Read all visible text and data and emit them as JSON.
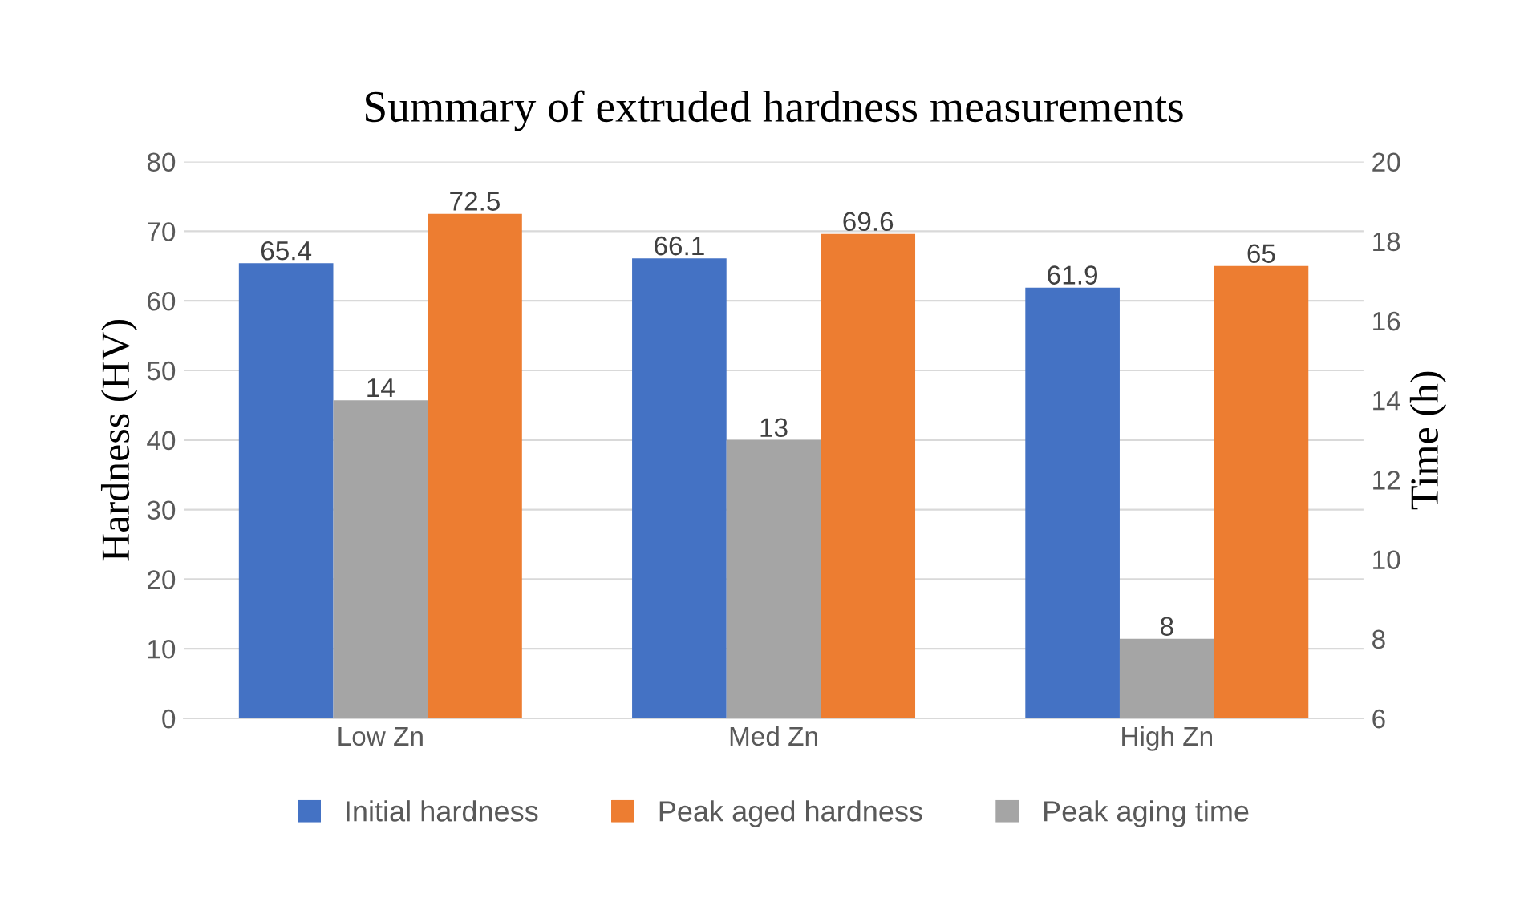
{
  "chart_data": {
    "type": "bar",
    "title": "Summary of extruded hardness measurements",
    "ylabel": "Hardness (HV)",
    "y2label": "Time (h)",
    "categories": [
      "Low Zn",
      "Med Zn",
      "High Zn"
    ],
    "series": [
      {
        "name": "Initial hardness",
        "color": "#4472c4",
        "values": [
          65.4,
          66.1,
          61.9
        ]
      },
      {
        "name": "Peak aged hardness",
        "color": "#ed7d31",
        "values": [
          72.5,
          69.6,
          65
        ]
      },
      {
        "name": "Peak aging time",
        "color": "#a5a5a5",
        "values": [
          14,
          13,
          8
        ],
        "axis": "y2"
      }
    ],
    "ylim": [
      0,
      80
    ],
    "yticks": [
      0,
      10,
      20,
      30,
      40,
      50,
      60,
      70,
      80
    ],
    "y2lim": [
      6,
      20
    ],
    "y2ticks": [
      6,
      8,
      10,
      12,
      14,
      16,
      18,
      20
    ],
    "grid": "y",
    "legend": "bottom",
    "data_labels": true
  }
}
